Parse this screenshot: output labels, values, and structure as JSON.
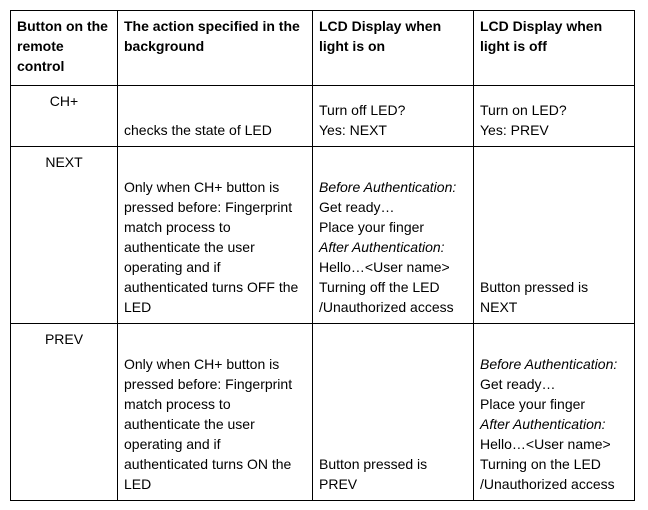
{
  "table": {
    "headers": [
      "Button on the remote control",
      "The action specified in the background",
      "LCD Display when light is on",
      "LCD Display when light is off"
    ],
    "rows": [
      {
        "button": "CH+",
        "action": "checks the state of LED",
        "on": [
          "Turn off LED?",
          "Yes: NEXT"
        ],
        "off": [
          "Turn on LED?",
          "Yes: PREV"
        ]
      },
      {
        "button": "NEXT",
        "action": "Only when CH+ button is pressed before: Fingerprint match process to authenticate the user operating and if authenticated turns OFF the LED",
        "on": {
          "before_label": "Before Authentication:",
          "before_lines": [
            "Get ready…",
            "Place your finger"
          ],
          "after_label": "After Authentication:",
          "after_lines": [
            "Hello…<User name>",
            "Turning off the LED",
            "/Unauthorized access"
          ]
        },
        "off": "Button pressed is NEXT"
      },
      {
        "button": "PREV",
        "action": "Only when CH+ button is pressed before: Fingerprint match process to authenticate the user operating and if authenticated turns ON the LED",
        "on": "Button pressed is PREV",
        "off": {
          "before_label": "Before Authentication:",
          "before_lines": [
            "Get ready…",
            "Place your finger"
          ],
          "after_label": "After Authentication:",
          "after_lines": [
            "Hello…<User name>",
            "Turning on the LED",
            "/Unauthorized access"
          ]
        }
      }
    ]
  }
}
